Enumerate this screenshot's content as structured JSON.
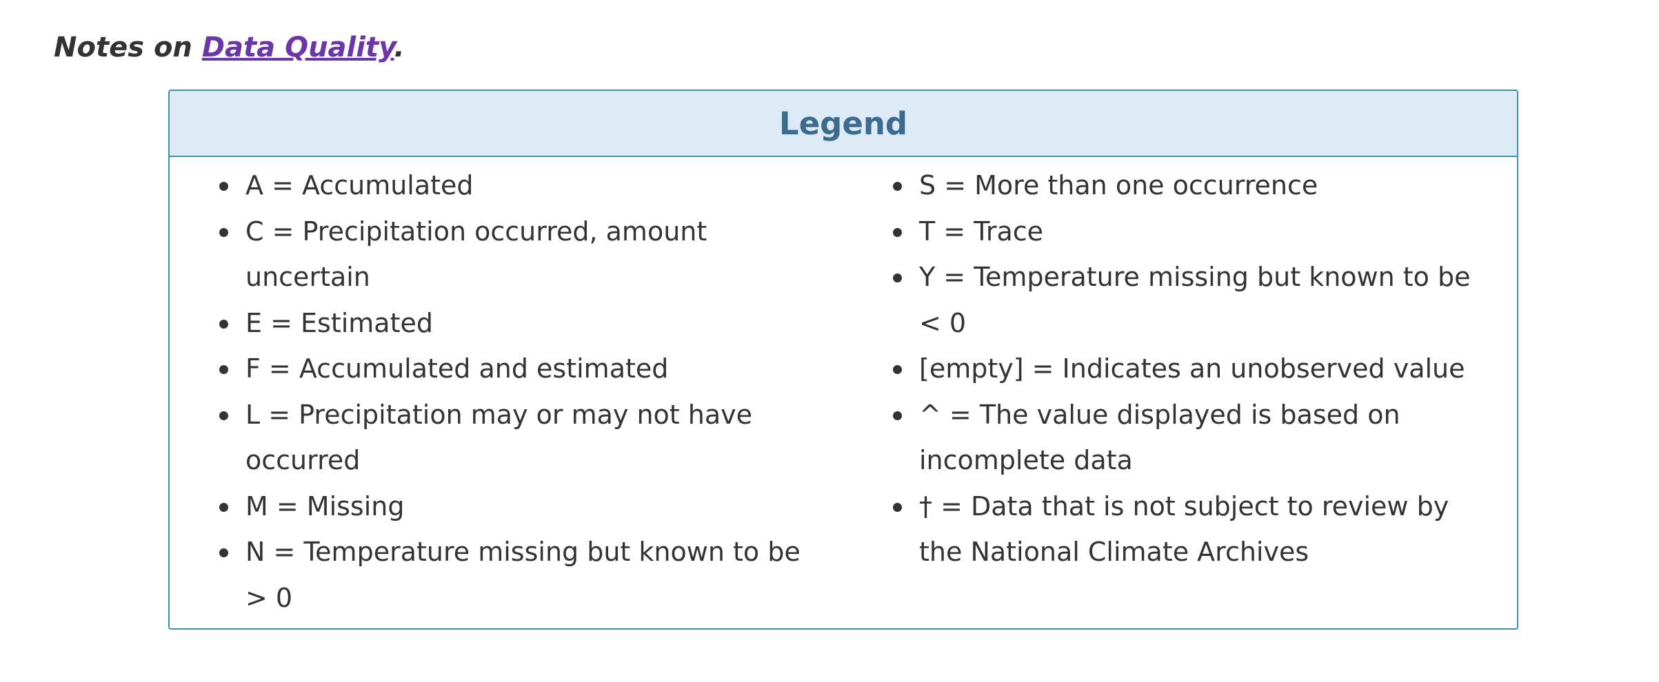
{
  "notes": {
    "prefix": "Notes on ",
    "link": "Data Quality",
    "suffix": "."
  },
  "legend": {
    "title": "Legend",
    "left_items": [
      "A = Accumulated",
      "C = Precipitation occurred, amount uncertain",
      "E = Estimated",
      "F = Accumulated and estimated",
      "L = Precipitation may or may not have occurred",
      "M = Missing",
      "N = Temperature missing but known to be > 0"
    ],
    "right_items": [
      "S = More than one occurrence",
      "T = Trace",
      "Y = Temperature missing but known to be < 0",
      "[empty] = Indicates an unobserved value",
      "^ = The value displayed is based on incomplete data",
      "† = Data that is not subject to review by the National Climate Archives"
    ]
  }
}
